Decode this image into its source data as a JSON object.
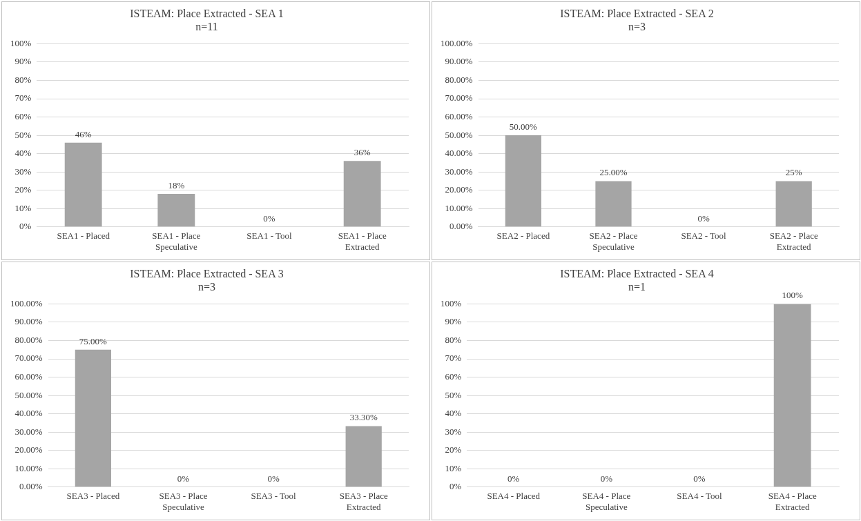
{
  "chart_data": [
    {
      "type": "bar",
      "title": "ISTEAM: Place Extracted - SEA 1",
      "subtitle": "n=11",
      "categories": [
        "SEA1 - Placed",
        "SEA1 - Place Speculative",
        "SEA1 - Tool",
        "SEA1 - Place Extracted"
      ],
      "values": [
        46,
        18,
        0,
        36
      ],
      "value_labels": [
        "46%",
        "18%",
        "0%",
        "36%"
      ],
      "color": "#a5a5a5",
      "ylim": [
        0,
        100
      ],
      "yticks": [
        {
          "value": 0,
          "label": "0%"
        },
        {
          "value": 10,
          "label": "10%"
        },
        {
          "value": 20,
          "label": "20%"
        },
        {
          "value": 30,
          "label": "30%"
        },
        {
          "value": 40,
          "label": "40%"
        },
        {
          "value": 50,
          "label": "50%"
        },
        {
          "value": 60,
          "label": "60%"
        },
        {
          "value": 70,
          "label": "70%"
        },
        {
          "value": 80,
          "label": "80%"
        },
        {
          "value": 90,
          "label": "90%"
        },
        {
          "value": 100,
          "label": "100%"
        }
      ],
      "grid": "y",
      "legend": false
    },
    {
      "type": "bar",
      "title": "ISTEAM: Place Extracted - SEA 2",
      "subtitle": "n=3",
      "categories": [
        "SEA2 - Placed",
        "SEA2 - Place Speculative",
        "SEA2 - Tool",
        "SEA2 - Place Extracted"
      ],
      "values": [
        50,
        25,
        0,
        25
      ],
      "value_labels": [
        "50.00%",
        "25.00%",
        "0%",
        "25%"
      ],
      "color": "#a5a5a5",
      "ylim": [
        0,
        100
      ],
      "yticks": [
        {
          "value": 0,
          "label": "0.00%"
        },
        {
          "value": 10,
          "label": "10.00%"
        },
        {
          "value": 20,
          "label": "20.00%"
        },
        {
          "value": 30,
          "label": "30.00%"
        },
        {
          "value": 40,
          "label": "40.00%"
        },
        {
          "value": 50,
          "label": "50.00%"
        },
        {
          "value": 60,
          "label": "60.00%"
        },
        {
          "value": 70,
          "label": "70.00%"
        },
        {
          "value": 80,
          "label": "80.00%"
        },
        {
          "value": 90,
          "label": "90.00%"
        },
        {
          "value": 100,
          "label": "100.00%"
        }
      ],
      "grid": "y",
      "legend": false
    },
    {
      "type": "bar",
      "title": "ISTEAM: Place Extracted - SEA 3",
      "subtitle": "n=3",
      "categories": [
        "SEA3 - Placed",
        "SEA3 - Place Speculative",
        "SEA3 - Tool",
        "SEA3 - Place Extracted"
      ],
      "values": [
        75,
        0,
        0,
        33.3
      ],
      "value_labels": [
        "75.00%",
        "0%",
        "0%",
        "33.30%"
      ],
      "color": "#a5a5a5",
      "ylim": [
        0,
        100
      ],
      "yticks": [
        {
          "value": 0,
          "label": "0.00%"
        },
        {
          "value": 10,
          "label": "10.00%"
        },
        {
          "value": 20,
          "label": "20.00%"
        },
        {
          "value": 30,
          "label": "30.00%"
        },
        {
          "value": 40,
          "label": "40.00%"
        },
        {
          "value": 50,
          "label": "50.00%"
        },
        {
          "value": 60,
          "label": "60.00%"
        },
        {
          "value": 70,
          "label": "70.00%"
        },
        {
          "value": 80,
          "label": "80.00%"
        },
        {
          "value": 90,
          "label": "90.00%"
        },
        {
          "value": 100,
          "label": "100.00%"
        }
      ],
      "grid": "y",
      "legend": false
    },
    {
      "type": "bar",
      "title": "ISTEAM: Place Extracted - SEA 4",
      "subtitle": "n=1",
      "categories": [
        "SEA4 - Placed",
        "SEA4 - Place Speculative",
        "SEA4 - Tool",
        "SEA4 - Place Extracted"
      ],
      "values": [
        0,
        0,
        0,
        100
      ],
      "value_labels": [
        "0%",
        "0%",
        "0%",
        "100%"
      ],
      "color": "#a5a5a5",
      "ylim": [
        0,
        100
      ],
      "yticks": [
        {
          "value": 0,
          "label": "0%"
        },
        {
          "value": 10,
          "label": "10%"
        },
        {
          "value": 20,
          "label": "20%"
        },
        {
          "value": 30,
          "label": "30%"
        },
        {
          "value": 40,
          "label": "40%"
        },
        {
          "value": 50,
          "label": "50%"
        },
        {
          "value": 60,
          "label": "60%"
        },
        {
          "value": 70,
          "label": "70%"
        },
        {
          "value": 80,
          "label": "80%"
        },
        {
          "value": 90,
          "label": "90%"
        },
        {
          "value": 100,
          "label": "100%"
        }
      ],
      "grid": "y",
      "legend": false
    }
  ]
}
